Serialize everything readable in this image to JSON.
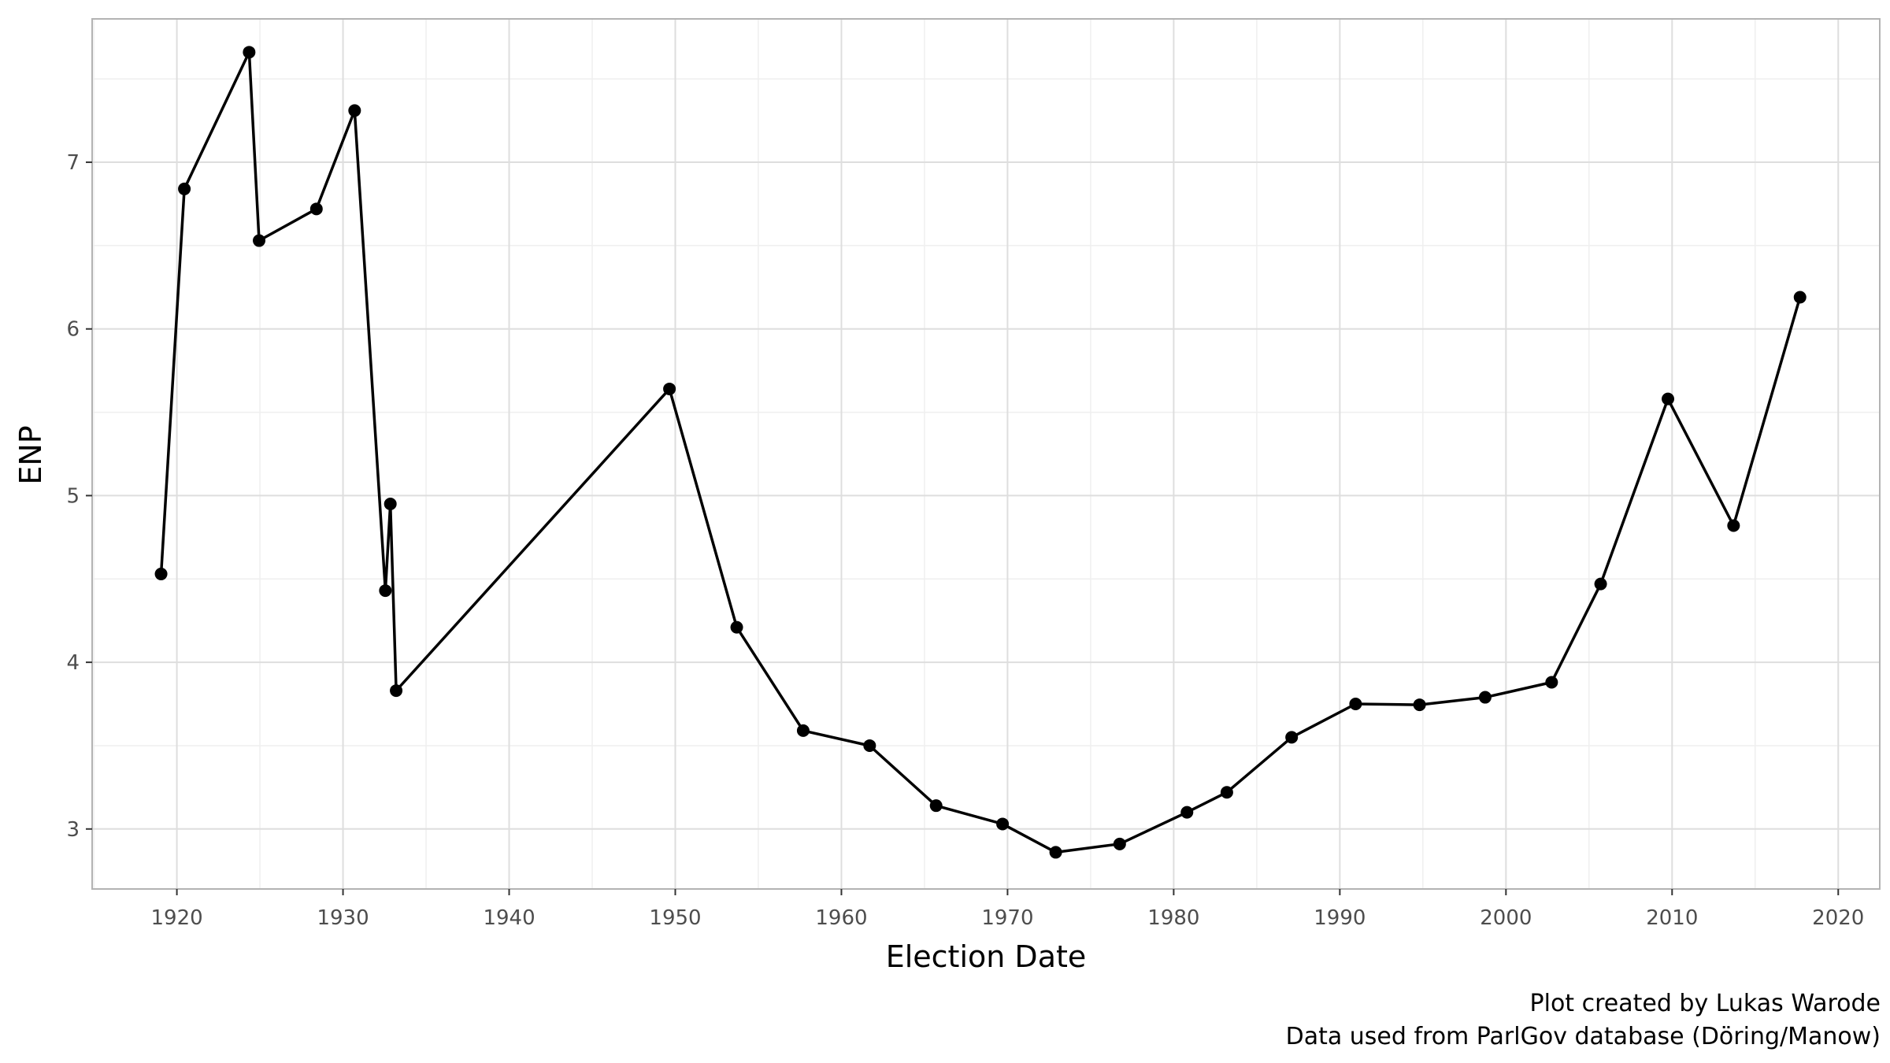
{
  "chart_data": {
    "type": "line",
    "title": "",
    "xlabel": "Election Date",
    "ylabel": "ENP",
    "xlim": [
      1914.9,
      2022.5
    ],
    "ylim": [
      2.64,
      7.86
    ],
    "x_ticks": [
      1920,
      1930,
      1940,
      1950,
      1960,
      1970,
      1980,
      1990,
      2000,
      2010,
      2020
    ],
    "x_tick_labels": [
      "1920",
      "1930",
      "1940",
      "1950",
      "1960",
      "1970",
      "1980",
      "1990",
      "2000",
      "2010",
      "2020"
    ],
    "y_ticks": [
      3,
      4,
      5,
      6,
      7
    ],
    "y_tick_labels": [
      "3",
      "4",
      "5",
      "6",
      "7"
    ],
    "grid": true,
    "legend": "none",
    "colors": {
      "line": "#000000",
      "point": "#000000",
      "grid_major": "#dedede",
      "grid_minor": "#efefef",
      "panel_border": "#b3b3b3"
    },
    "series": [
      {
        "x": [
          1919.05,
          1920.45,
          1924.35,
          1924.95,
          1928.4,
          1930.7,
          1932.55,
          1932.85,
          1933.2,
          1949.65,
          1953.7,
          1957.7,
          1961.7,
          1965.7,
          1969.7,
          1972.9,
          1976.75,
          1980.8,
          1983.2,
          1987.1,
          1990.95,
          1994.8,
          1998.75,
          2002.75,
          2005.7,
          2009.75,
          2013.7,
          2017.7
        ],
        "y": [
          4.53,
          6.84,
          7.66,
          6.53,
          6.72,
          7.31,
          4.43,
          4.95,
          3.83,
          5.64,
          4.21,
          3.59,
          3.5,
          3.14,
          3.03,
          2.86,
          2.91,
          3.1,
          3.22,
          3.55,
          3.75,
          3.745,
          3.79,
          3.88,
          4.47,
          5.58,
          4.82,
          6.19
        ]
      }
    ]
  },
  "caption": {
    "line1": "Plot created by Lukas Warode",
    "line2": "Data used from ParlGov database (Döring/Manow)"
  }
}
